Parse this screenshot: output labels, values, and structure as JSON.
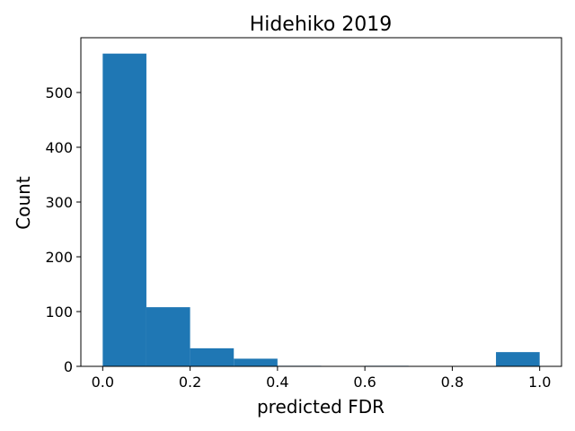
{
  "chart_data": {
    "type": "bar",
    "title": "Hidehiko 2019",
    "xlabel": "predicted FDR",
    "ylabel": "Count",
    "bin_edges": [
      0.0,
      0.1,
      0.2,
      0.3,
      0.4,
      0.5,
      0.6,
      0.7,
      0.8,
      0.9,
      1.0
    ],
    "values": [
      571,
      108,
      33,
      14,
      1,
      0,
      1,
      0,
      0,
      26
    ],
    "xlim": [
      -0.05,
      1.05
    ],
    "ylim": [
      0,
      600
    ],
    "x_ticks": [
      0.0,
      0.2,
      0.4,
      0.6,
      0.8,
      1.0
    ],
    "x_tick_labels": [
      "0.0",
      "0.2",
      "0.4",
      "0.6",
      "0.8",
      "1.0"
    ],
    "y_ticks": [
      0,
      100,
      200,
      300,
      400,
      500
    ],
    "y_tick_labels": [
      "0",
      "100",
      "200",
      "300",
      "400",
      "500"
    ],
    "bar_color": "#1f77b4",
    "grid": false
  }
}
